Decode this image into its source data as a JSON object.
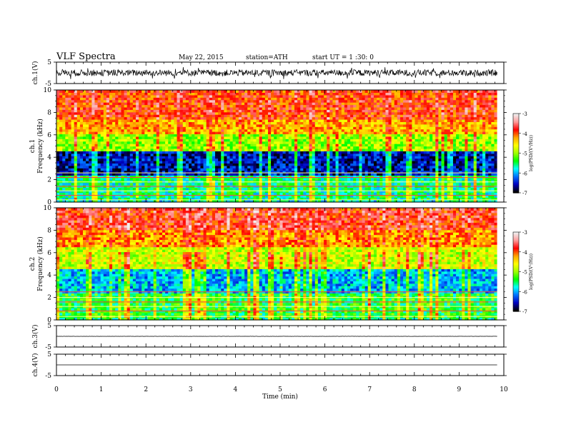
{
  "header": {
    "title": "VLF  Spectra",
    "date": "May 22, 2015",
    "station": "station=ATH",
    "start": "start  UT =   1 :30: 0"
  },
  "colorbar": {
    "label": "log(PSD/(V²/Hz))",
    "ticks": [
      "-3",
      "-4",
      "-5",
      "-6",
      "-7"
    ],
    "colormap": [
      "#f0f0f0",
      "#ff9a9a",
      "#ff0000",
      "#ffa500",
      "#ffff00",
      "#a0ff00",
      "#00ff00",
      "#00ffff",
      "#0070ff",
      "#0000c0",
      "#000000"
    ]
  },
  "chart_data": [
    {
      "type": "line",
      "name": "ch.1 waveform",
      "ylabel": "ch.1(V)",
      "ylim": [
        -5,
        5
      ],
      "yticks": [
        "5",
        "-5"
      ],
      "mean": 0,
      "amplitude_typical": 1.5,
      "amplitude_spikes": 3,
      "xlim": [
        0,
        9.85
      ]
    },
    {
      "type": "heatmap",
      "name": "ch.1 spectrogram",
      "ylabel": "ch.1\nFrequency  (kHz)",
      "ylim": [
        0,
        10
      ],
      "yticks": [
        "0",
        "2",
        "4",
        "6",
        "8",
        "10"
      ],
      "x_range_min": [
        0,
        9.85
      ],
      "bands_khz_to_logpsd": [
        {
          "f": [
            0,
            0.3
          ],
          "v": -5.8
        },
        {
          "f": [
            0.3,
            2.5
          ],
          "v": -5.6
        },
        {
          "f": [
            2.5,
            4.5
          ],
          "v": -6.6
        },
        {
          "f": [
            4.5,
            6.0
          ],
          "v": -5.0
        },
        {
          "f": [
            6.0,
            7.5
          ],
          "v": -4.3
        },
        {
          "f": [
            7.5,
            10
          ],
          "v": -3.9
        }
      ],
      "lines_khz": [
        0.2,
        0.6,
        1.0,
        1.4,
        1.8,
        2.2,
        2.6
      ]
    },
    {
      "type": "heatmap",
      "name": "ch.2 spectrogram",
      "ylabel": "ch.2\nFrequency  (kHz)",
      "ylim": [
        0,
        10
      ],
      "yticks": [
        "0",
        "2",
        "4",
        "6",
        "8",
        "10"
      ],
      "x_range_min": [
        0,
        9.85
      ],
      "bands_khz_to_logpsd": [
        {
          "f": [
            0,
            0.3
          ],
          "v": -5.6
        },
        {
          "f": [
            0.3,
            2.5
          ],
          "v": -5.4
        },
        {
          "f": [
            2.5,
            4.5
          ],
          "v": -6.0
        },
        {
          "f": [
            4.5,
            6.5
          ],
          "v": -4.8
        },
        {
          "f": [
            6.5,
            8.0
          ],
          "v": -4.2
        },
        {
          "f": [
            8.0,
            10
          ],
          "v": -3.8
        }
      ],
      "lines_khz": [
        0.3,
        0.8,
        1.2,
        1.6,
        2.0,
        2.5
      ]
    },
    {
      "type": "line",
      "name": "ch.3 waveform",
      "ylabel": "ch.3(V)",
      "ylim": [
        -5,
        5
      ],
      "yticks": [
        "5",
        "-5"
      ],
      "mean": 0,
      "amplitude_typical": 0.05
    },
    {
      "type": "line",
      "name": "ch.4 waveform",
      "ylabel": "ch.4(V)",
      "ylim": [
        -5,
        5
      ],
      "yticks": [
        "5",
        "-5"
      ],
      "mean": 0,
      "amplitude_typical": 0.0
    }
  ],
  "xaxis": {
    "label": "Time  (min)",
    "ticks": [
      "0",
      "1",
      "2",
      "3",
      "4",
      "5",
      "6",
      "7",
      "8",
      "9",
      "10"
    ],
    "xlim": [
      0,
      10
    ]
  }
}
